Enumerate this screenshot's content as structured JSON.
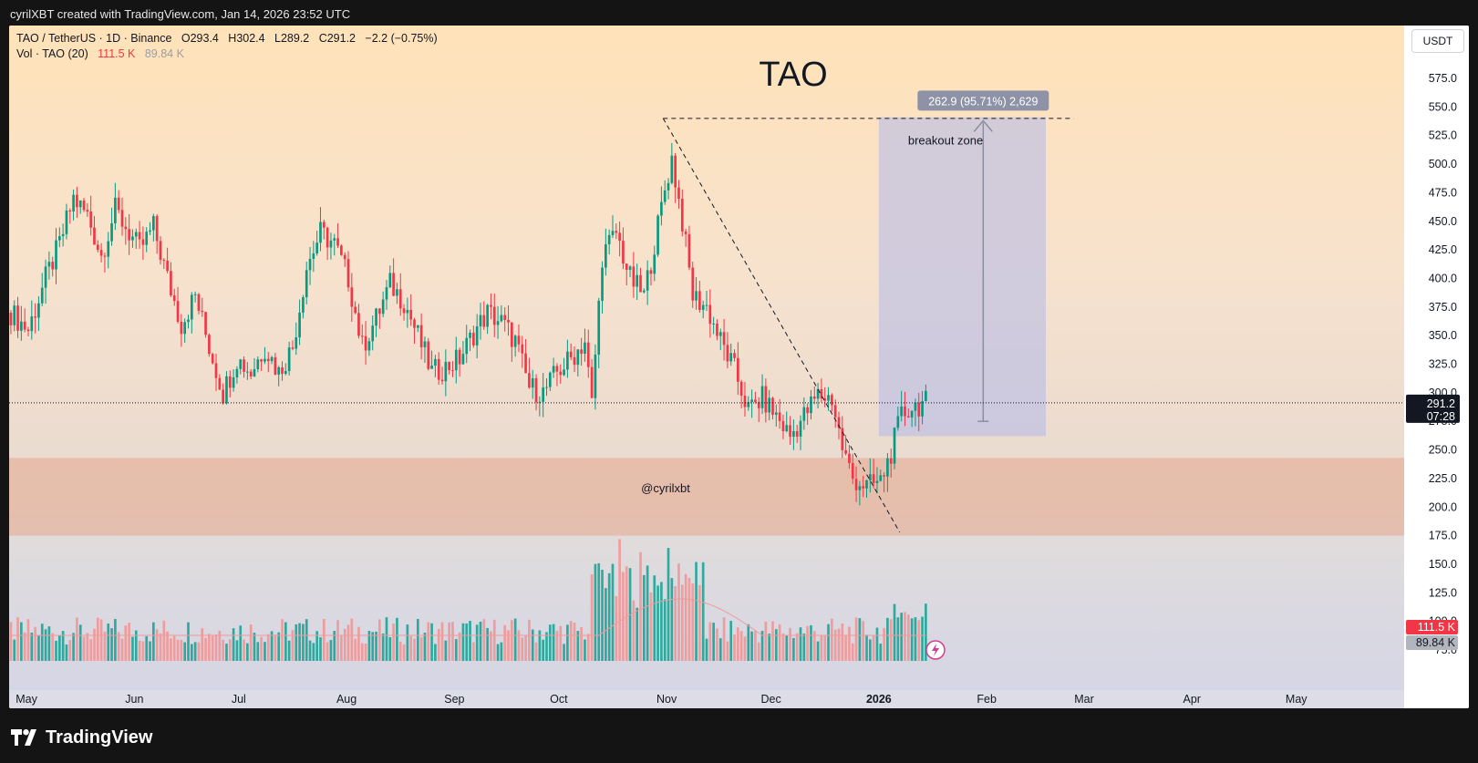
{
  "header": {
    "attribution": "cyrilXBT created with TradingView.com, Jan 14, 2026 23:52 UTC"
  },
  "legend": {
    "symbol_line": "TAO / TetherUS · 1D · Binance",
    "open": "O293.4",
    "high": "H302.4",
    "low": "L289.2",
    "close": "C291.2",
    "change": "−2.2 (−0.75%)",
    "vol_label": "Vol · TAO (20)",
    "vol_value": "111.5 K",
    "vol_ma": "89.84 K"
  },
  "currency_button": "USDT",
  "footer": {
    "brand": "TradingView"
  },
  "colors": {
    "up": "#089981",
    "down": "#f23645",
    "vol_up": "#26a69a",
    "vol_down": "#ef9a9a",
    "support_zone": "#e6a58a",
    "breakout_zone": "#b7bde8"
  },
  "chart_data": {
    "type": "candlestick",
    "title": "TAO",
    "watermark": "@cyrilxbt",
    "y_ticks": [
      "575.0",
      "550.0",
      "525.0",
      "500.0",
      "475.0",
      "450.0",
      "425.0",
      "400.0",
      "375.0",
      "350.0",
      "325.0",
      "300.0",
      "275.0",
      "250.0",
      "225.0",
      "200.0",
      "175.0",
      "150.0",
      "125.0",
      "100.0",
      "75.0"
    ],
    "ylim": [
      75,
      590
    ],
    "x_ticks": [
      {
        "label": "May",
        "x": "2025-05-01"
      },
      {
        "label": "Jun",
        "x": "2025-06-01"
      },
      {
        "label": "Jul",
        "x": "2025-07-01"
      },
      {
        "label": "Aug",
        "x": "2025-08-01"
      },
      {
        "label": "Sep",
        "x": "2025-09-01"
      },
      {
        "label": "Oct",
        "x": "2025-10-01"
      },
      {
        "label": "Nov",
        "x": "2025-11-01"
      },
      {
        "label": "Dec",
        "x": "2025-12-01"
      },
      {
        "label": "2026",
        "x": "2026-01-01",
        "bold": true
      },
      {
        "label": "Feb",
        "x": "2026-02-01"
      },
      {
        "label": "Mar",
        "x": "2026-03-01"
      },
      {
        "label": "Apr",
        "x": "2026-04-01"
      },
      {
        "label": "May",
        "x": "2026-05-01"
      }
    ],
    "xlim": [
      "2025-04-26",
      "2026-06-01"
    ],
    "price_series": [
      [
        "2025-04-26",
        370
      ],
      [
        "2025-05-01",
        355
      ],
      [
        "2025-05-06",
        400
      ],
      [
        "2025-05-10",
        430
      ],
      [
        "2025-05-14",
        470
      ],
      [
        "2025-05-18",
        455
      ],
      [
        "2025-05-22",
        420
      ],
      [
        "2025-05-26",
        460
      ],
      [
        "2025-05-30",
        440
      ],
      [
        "2025-06-02",
        425
      ],
      [
        "2025-06-06",
        445
      ],
      [
        "2025-06-10",
        400
      ],
      [
        "2025-06-14",
        360
      ],
      [
        "2025-06-18",
        385
      ],
      [
        "2025-06-22",
        340
      ],
      [
        "2025-06-26",
        300
      ],
      [
        "2025-06-30",
        330
      ],
      [
        "2025-07-04",
        318
      ],
      [
        "2025-07-08",
        340
      ],
      [
        "2025-07-12",
        318
      ],
      [
        "2025-07-16",
        340
      ],
      [
        "2025-07-20",
        410
      ],
      [
        "2025-07-24",
        440
      ],
      [
        "2025-07-28",
        430
      ],
      [
        "2025-08-01",
        400
      ],
      [
        "2025-08-05",
        340
      ],
      [
        "2025-08-09",
        365
      ],
      [
        "2025-08-13",
        395
      ],
      [
        "2025-08-17",
        380
      ],
      [
        "2025-08-21",
        350
      ],
      [
        "2025-08-25",
        318
      ],
      [
        "2025-08-29",
        322
      ],
      [
        "2025-09-02",
        330
      ],
      [
        "2025-09-06",
        352
      ],
      [
        "2025-09-10",
        370
      ],
      [
        "2025-09-14",
        362
      ],
      [
        "2025-09-18",
        345
      ],
      [
        "2025-09-22",
        305
      ],
      [
        "2025-09-26",
        300
      ],
      [
        "2025-09-30",
        318
      ],
      [
        "2025-10-04",
        330
      ],
      [
        "2025-10-08",
        345
      ],
      [
        "2025-10-10",
        290
      ],
      [
        "2025-10-13",
        420
      ],
      [
        "2025-10-17",
        440
      ],
      [
        "2025-10-21",
        400
      ],
      [
        "2025-10-25",
        385
      ],
      [
        "2025-10-28",
        430
      ],
      [
        "2025-10-31",
        478
      ],
      [
        "2025-11-02",
        505
      ],
      [
        "2025-11-05",
        450
      ],
      [
        "2025-11-08",
        385
      ],
      [
        "2025-11-12",
        375
      ],
      [
        "2025-11-16",
        345
      ],
      [
        "2025-11-20",
        320
      ],
      [
        "2025-11-24",
        285
      ],
      [
        "2025-11-28",
        295
      ],
      [
        "2025-12-02",
        280
      ],
      [
        "2025-12-06",
        262
      ],
      [
        "2025-12-10",
        280
      ],
      [
        "2025-12-14",
        298
      ],
      [
        "2025-12-18",
        295
      ],
      [
        "2025-12-21",
        252
      ],
      [
        "2025-12-24",
        225
      ],
      [
        "2025-12-28",
        218
      ],
      [
        "2026-01-01",
        222
      ],
      [
        "2026-01-04",
        248
      ],
      [
        "2026-01-07",
        280
      ],
      [
        "2026-01-10",
        288
      ],
      [
        "2026-01-14",
        291.2
      ]
    ],
    "volume": {
      "label": "Vol · TAO (20)",
      "last": "111.5 K",
      "ma_last": "89.84 K"
    },
    "last_price": "291.2",
    "countdown": "07:28",
    "annotations": {
      "support_zone": {
        "y_from": 175,
        "y_to": 243
      },
      "breakout_zone": {
        "label": "breakout zone",
        "x_from": "2026-01-01",
        "x_to": "2026-02-18",
        "y_from": 262,
        "y_to": 541
      },
      "measure": {
        "label": "262.9 (95.71%) 2,629",
        "x": "2026-01-31",
        "y_from": 275,
        "y_to": 538
      },
      "resistance": {
        "y": 540,
        "x_from": "2025-10-31",
        "x_to": "2026-02-26"
      },
      "downtrend": {
        "x_from": "2025-10-31",
        "y_from": 540,
        "x_to": "2026-01-07",
        "y_to": 178
      }
    }
  }
}
